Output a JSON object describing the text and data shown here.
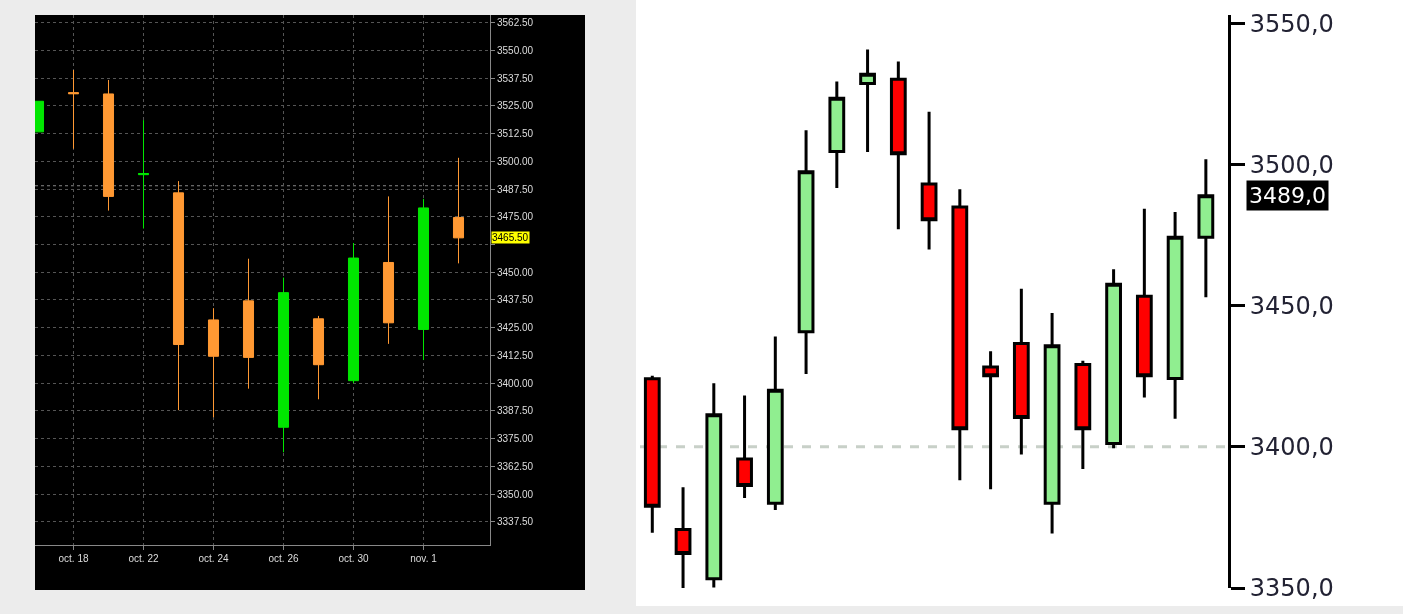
{
  "chart_data": [
    {
      "type": "candlestick",
      "categories": [
        null,
        "oct. 18",
        null,
        "oct. 22",
        null,
        "oct. 24",
        null,
        "oct. 26",
        null,
        "oct. 30",
        null,
        "nov. 1",
        null
      ],
      "ohlc": [
        [
          3513.3,
          3527.1,
          3513.3,
          3527.1
        ],
        [
          3531.0,
          3541.2,
          3505.7,
          3530.5
        ],
        [
          3530.4,
          3536.7,
          3477.8,
          3484.2
        ],
        [
          3494.0,
          3518.6,
          3469.7,
          3494.5
        ],
        [
          3485.8,
          3491.1,
          3387.8,
          3417.4
        ],
        [
          3428.5,
          3433.8,
          3384.6,
          3412.1
        ],
        [
          3437.1,
          3456.1,
          3397.5,
          3411.6
        ],
        [
          3380.1,
          3447.6,
          3368.8,
          3440.8
        ],
        [
          3429.0,
          3430.3,
          3392.7,
          3408.3
        ],
        [
          3401.1,
          3463.2,
          3400.0,
          3456.4
        ],
        [
          3454.4,
          3484.2,
          3417.7,
          3427.2
        ],
        [
          3424.2,
          3483.1,
          3410.4,
          3479.0
        ],
        [
          3474.7,
          3501.6,
          3454.0,
          3465.5
        ]
      ],
      "colors": [
        "#00e600",
        "#ff9933",
        "#ff9933",
        "#00e600",
        "#ff9933",
        "#ff9933",
        "#ff9933",
        "#00e600",
        "#ff9933",
        "#00e600",
        "#ff9933",
        "#00e600",
        "#ff9933"
      ],
      "ylim": [
        3327,
        3566
      ],
      "yticks": [
        {
          "value": 3337.5,
          "label": "3337.50"
        },
        {
          "value": 3350,
          "label": "3350.00"
        },
        {
          "value": 3362.5,
          "label": "3362.50"
        },
        {
          "value": 3375,
          "label": "3375.00"
        },
        {
          "value": 3387.5,
          "label": "3387.50"
        },
        {
          "value": 3400,
          "label": "3400.00"
        },
        {
          "value": 3412.5,
          "label": "3412.50"
        },
        {
          "value": 3425,
          "label": "3425.00"
        },
        {
          "value": 3437.5,
          "label": "3437.50"
        },
        {
          "value": 3450,
          "label": "3450.00"
        },
        {
          "value": 3462.5,
          "label": null
        },
        {
          "value": 3475,
          "label": "3475.00"
        },
        {
          "value": 3487.5,
          "label": "3487.50"
        },
        {
          "value": 3500,
          "label": "3500.00"
        },
        {
          "value": 3512.5,
          "label": "3512.50"
        },
        {
          "value": 3525,
          "label": "3525.00"
        },
        {
          "value": 3537.5,
          "label": "3537.50"
        },
        {
          "value": 3550,
          "label": "3550.00"
        },
        {
          "value": 3562.5,
          "label": "3562.50"
        }
      ],
      "grid": true,
      "ref_lines": [
        {
          "axis": "y",
          "value": 3489,
          "label": null,
          "color": "#888888",
          "line_style": "dotted"
        }
      ],
      "annotations": [
        "3465.50"
      ]
    },
    {
      "type": "candlestick",
      "categories": [
        null,
        null,
        null,
        null,
        null,
        null,
        null,
        null,
        null,
        null,
        null,
        null,
        null,
        null,
        null,
        null,
        null,
        null,
        null
      ],
      "ohlc": [
        [
          3424.1,
          3425.2,
          3369.6,
          3379.0
        ],
        [
          3370.7,
          3385.7,
          3350.0,
          3362.2
        ],
        [
          3353.3,
          3422.5,
          3350.2,
          3411.4
        ],
        [
          3395.7,
          3418.2,
          3381.9,
          3386.3
        ],
        [
          3380.0,
          3439.1,
          3377.6,
          3420.1
        ],
        [
          3440.8,
          3512.2,
          3425.8,
          3497.5
        ],
        [
          3504.6,
          3529.4,
          3491.7,
          3523.5
        ],
        [
          3528.7,
          3540.8,
          3504.5,
          3532.0
        ],
        [
          3530.2,
          3536.5,
          3477.1,
          3503.8
        ],
        [
          3493.1,
          3518.7,
          3469.9,
          3480.5
        ],
        [
          3485.0,
          3491.3,
          3388.2,
          3406.4
        ],
        [
          3428.3,
          3433.9,
          3385.0,
          3425.2
        ],
        [
          3436.6,
          3456.0,
          3397.3,
          3410.4
        ],
        [
          3380.0,
          3447.4,
          3369.3,
          3435.8
        ],
        [
          3429.2,
          3430.5,
          3392.2,
          3406.4
        ],
        [
          3401.2,
          3462.9,
          3399.5,
          3457.6
        ],
        [
          3453.4,
          3484.4,
          3417.5,
          3425.2
        ],
        [
          3424.2,
          3483.2,
          3410.0,
          3474.3
        ],
        [
          3474.3,
          3501.9,
          3453.0,
          3489.0
        ]
      ],
      "colors": [
        "#ff0000",
        "#ff0000",
        "#90ee90",
        "#ff0000",
        "#90ee90",
        "#90ee90",
        "#90ee90",
        "#90ee90",
        "#ff0000",
        "#ff0000",
        "#ff0000",
        "#ff0000",
        "#ff0000",
        "#90ee90",
        "#ff0000",
        "#90ee90",
        "#ff0000",
        "#90ee90",
        "#90ee90"
      ],
      "ylim": [
        3350,
        3553
      ],
      "yticks": [
        {
          "value": 3350,
          "label": "3350,0"
        },
        {
          "value": 3400,
          "label": "3400,0"
        },
        {
          "value": 3450,
          "label": "3450,0"
        },
        {
          "value": 3500,
          "label": "3500,0"
        },
        {
          "value": 3550,
          "label": "3550,0"
        }
      ],
      "tick_labels": "y",
      "ref_lines": [
        {
          "axis": "y",
          "value": 3400,
          "label": null,
          "color": "#c8d0c8",
          "line_style": "dashed"
        }
      ],
      "annotations": [
        "3489,0"
      ]
    }
  ]
}
